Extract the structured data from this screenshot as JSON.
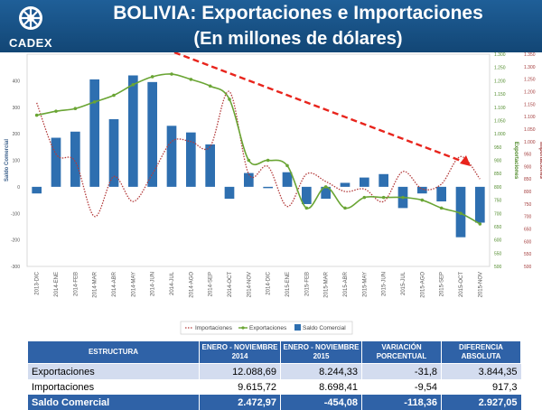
{
  "header": {
    "logo_text": "CADEX",
    "title_line1": "BOLIVIA: Exportaciones e Importaciones",
    "title_line2": "(En millones de dólares)"
  },
  "colors": {
    "header_bg": "#1a5590",
    "bars": "#2e6fb0",
    "exports_line": "#6aa534",
    "imports_line": "#b33a3a",
    "trend_arrow": "#e8241c",
    "table_header": "#2f62a7"
  },
  "chart_data": {
    "type": "bar",
    "categories": [
      "2013-DIC",
      "2014-ENE",
      "2014-FEB",
      "2014-MAR",
      "2014-ABR",
      "2014-MAY",
      "2014-JUN",
      "2014-JUL",
      "2014-AGO",
      "2014-SEP",
      "2014-OCT",
      "2014-NOV",
      "2014-DIC",
      "2015-ENE",
      "2015-FEB",
      "2015-MAR",
      "2015-ABR",
      "2015-MAY",
      "2015-JUN",
      "2015-JUL",
      "2015-AGO",
      "2015-SEP",
      "2015-OCT",
      "2015-NOV"
    ],
    "series": [
      {
        "name": "Saldo Comercial",
        "kind": "bar",
        "axis": "left",
        "values": [
          -25,
          185,
          208,
          405,
          255,
          420,
          395,
          230,
          205,
          160,
          -45,
          52,
          -5,
          55,
          -65,
          -45,
          15,
          35,
          48,
          -80,
          -25,
          -55,
          -190,
          -135
        ]
      },
      {
        "name": "Exportaciones",
        "kind": "line",
        "axis": "right",
        "values": [
          1070,
          1085,
          1095,
          1120,
          1145,
          1185,
          1215,
          1225,
          1205,
          1180,
          1130,
          900,
          900,
          880,
          720,
          800,
          720,
          760,
          760,
          760,
          750,
          720,
          700,
          660
        ]
      },
      {
        "name": "Importaciones",
        "kind": "line",
        "axis": "right",
        "values": [
          1155,
          950,
          920,
          700,
          860,
          760,
          870,
          1000,
          1000,
          980,
          1200,
          870,
          900,
          740,
          870,
          840,
          800,
          810,
          760,
          880,
          810,
          830,
          940,
          850
        ]
      }
    ],
    "left_axis": {
      "label": "Saldo Comercial",
      "ticks": [
        "400",
        "300",
        "200",
        "100",
        "0",
        "-100",
        "-200",
        "-300"
      ],
      "min": -300,
      "max": 500
    },
    "right_axis_exports": {
      "label": "Exportaciones",
      "ticks": [
        "1.300",
        "1.250",
        "1.200",
        "1.150",
        "1.100",
        "1.050",
        "1.000",
        "950",
        "900",
        "850",
        "800",
        "750",
        "700",
        "650",
        "600",
        "550",
        "500"
      ],
      "min": 500,
      "max": 1300
    },
    "right_axis_imports": {
      "label": "Importaciones",
      "ticks": [
        "1.350",
        "1.300",
        "1.250",
        "1.200",
        "1.150",
        "1.100",
        "1.050",
        "1.000",
        "950",
        "900",
        "850",
        "800",
        "750",
        "700",
        "650",
        "600",
        "550",
        "500"
      ],
      "min": 500,
      "max": 1350
    },
    "legend": [
      {
        "label": "Importaciones",
        "style": "dotted-line"
      },
      {
        "label": "Exportaciones",
        "style": "line-marker"
      },
      {
        "label": "Saldo Comercial",
        "style": "bar"
      }
    ],
    "legend_position": "bottom",
    "annotation": "red dashed trend arrow from 2014-JUL down to 2015-OCT"
  },
  "table": {
    "headers": [
      "ESTRUCTURA",
      "ENERO - NOVIEMBRE 2014",
      "ENERO - NOVIEMBRE 2015",
      "VARIACIÓN PORCENTUAL",
      "DIFERENCIA ABSOLUTA"
    ],
    "rows": [
      [
        "Exportaciones",
        "12.088,69",
        "8.244,33",
        "-31,8",
        "3.844,35"
      ],
      [
        "Importaciones",
        "9.615,72",
        "8.698,41",
        "-9,54",
        "917,3"
      ],
      [
        "Saldo Comercial",
        "2.472,97",
        "-454,08",
        "-118,36",
        "2.927,05"
      ]
    ]
  }
}
